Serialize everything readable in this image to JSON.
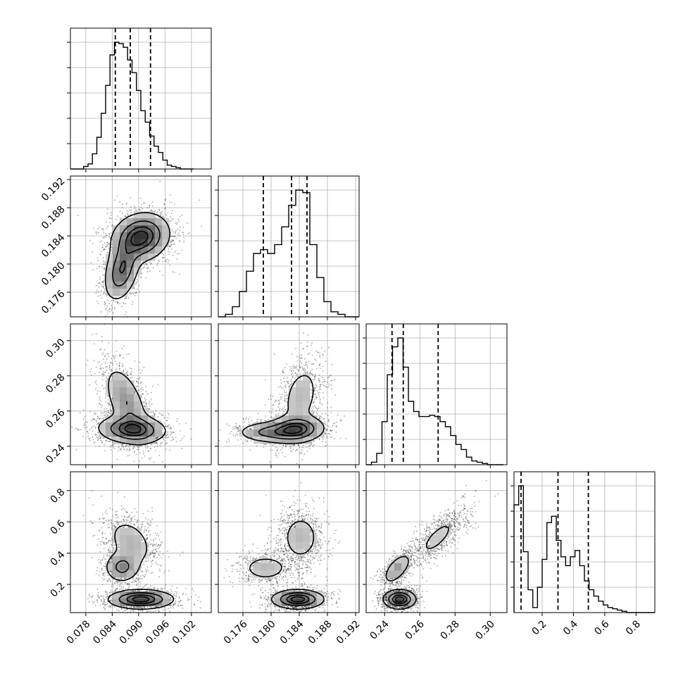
{
  "chart_data": {
    "type": "corner",
    "n_params": 4,
    "params": [
      {
        "index": 0,
        "range": [
          0.0745,
          0.1065
        ],
        "ticks": [
          0.078,
          0.084,
          0.09,
          0.096,
          0.102
        ],
        "tick_labels": [
          "0.078",
          "0.084",
          "0.090",
          "0.096",
          "0.102"
        ],
        "quantiles": [
          0.0847,
          0.0881,
          0.0927
        ],
        "hist_bins": [
          0.0745,
          0.0755,
          0.0765,
          0.0775,
          0.0785,
          0.0795,
          0.0805,
          0.0815,
          0.0825,
          0.0835,
          0.0845,
          0.0855,
          0.0865,
          0.0875,
          0.0885,
          0.0895,
          0.0905,
          0.0915,
          0.0925,
          0.0935,
          0.0945,
          0.0955,
          0.0965,
          0.0975,
          0.0985,
          0.0995,
          0.1005,
          0.1015,
          0.1025
        ],
        "hist_counts": [
          0,
          0,
          0,
          2,
          4,
          12,
          25,
          44,
          66,
          90,
          100,
          99,
          96,
          86,
          76,
          62,
          46,
          37,
          26,
          18,
          13,
          7,
          3,
          2,
          1,
          0,
          0,
          0
        ]
      },
      {
        "index": 1,
        "range": [
          0.1725,
          0.1925
        ],
        "ticks": [
          0.176,
          0.18,
          0.184,
          0.188,
          0.192
        ],
        "tick_labels": [
          "0.176",
          "0.180",
          "0.184",
          "0.188",
          "0.192"
        ],
        "quantiles": [
          0.1789,
          0.1829,
          0.1851
        ],
        "hist_bins": [
          0.1725,
          0.1735,
          0.1745,
          0.1755,
          0.1765,
          0.1775,
          0.1785,
          0.1795,
          0.1805,
          0.1815,
          0.1825,
          0.1835,
          0.1845,
          0.1855,
          0.1865,
          0.1875,
          0.1885,
          0.1895,
          0.1905,
          0.1915,
          0.1925
        ],
        "hist_counts": [
          0,
          2,
          8,
          20,
          36,
          50,
          53,
          50,
          57,
          71,
          88,
          100,
          98,
          57,
          31,
          12,
          4,
          2,
          0,
          0
        ]
      },
      {
        "index": 2,
        "range": [
          0.2295,
          0.3095
        ],
        "ticks": [
          0.24,
          0.26,
          0.28,
          0.3
        ],
        "tick_labels": [
          "0.24",
          "0.26",
          "0.28",
          "0.30"
        ],
        "quantiles": [
          0.2442,
          0.2506,
          0.2704
        ],
        "hist_bins": [
          0.2295,
          0.2325,
          0.2355,
          0.2385,
          0.2415,
          0.2445,
          0.2475,
          0.2505,
          0.2535,
          0.2565,
          0.2595,
          0.2625,
          0.2655,
          0.2685,
          0.2715,
          0.2745,
          0.2775,
          0.2805,
          0.2835,
          0.2865,
          0.2895,
          0.2925,
          0.2955,
          0.2985,
          0.3015,
          0.3045,
          0.3075
        ],
        "hist_counts": [
          0,
          2,
          9,
          34,
          71,
          93,
          100,
          77,
          50,
          42,
          38,
          38,
          39,
          38,
          34,
          30,
          23,
          16,
          12,
          6,
          3,
          2,
          1,
          0,
          0,
          0
        ]
      },
      {
        "index": 3,
        "range": [
          0.02,
          0.92
        ],
        "ticks": [
          0.2,
          0.4,
          0.6,
          0.8
        ],
        "tick_labels": [
          "0.2",
          "0.4",
          "0.6",
          "0.8"
        ],
        "quantiles": [
          0.065,
          0.301,
          0.495
        ],
        "hist_bins": [
          0.02,
          0.05,
          0.08,
          0.11,
          0.14,
          0.17,
          0.2,
          0.23,
          0.26,
          0.29,
          0.32,
          0.35,
          0.38,
          0.41,
          0.44,
          0.47,
          0.5,
          0.53,
          0.56,
          0.59,
          0.62,
          0.65,
          0.68,
          0.71,
          0.74,
          0.77,
          0.8,
          0.83,
          0.86,
          0.89,
          0.92
        ],
        "hist_counts": [
          85,
          100,
          48,
          18,
          4,
          20,
          42,
          71,
          76,
          57,
          44,
          37,
          44,
          49,
          37,
          25,
          18,
          13,
          9,
          6,
          4,
          3,
          2,
          1,
          0,
          0,
          0,
          0,
          0,
          0
        ]
      }
    ],
    "pairs": [
      {
        "x": 0,
        "y": 1,
        "modes": [
          {
            "cx": 0.0905,
            "cy": 0.1838,
            "sx": 0.0032,
            "sy": 0.0017,
            "rho": 0.15,
            "w": 0.65
          },
          {
            "cx": 0.0862,
            "cy": 0.1792,
            "sx": 0.002,
            "sy": 0.0022,
            "rho": 0.35,
            "w": 0.35
          }
        ]
      },
      {
        "x": 0,
        "y": 2,
        "modes": [
          {
            "cx": 0.0885,
            "cy": 0.2495,
            "sx": 0.0038,
            "sy": 0.004,
            "rho": -0.1,
            "w": 0.58
          },
          {
            "cx": 0.0872,
            "cy": 0.265,
            "sx": 0.0026,
            "sy": 0.011,
            "rho": -0.55,
            "w": 0.42
          }
        ]
      },
      {
        "x": 0,
        "y": 3,
        "modes": [
          {
            "cx": 0.0905,
            "cy": 0.105,
            "sx": 0.0036,
            "sy": 0.03,
            "rho": 0.0,
            "w": 0.5
          },
          {
            "cx": 0.0862,
            "cy": 0.31,
            "sx": 0.002,
            "sy": 0.05,
            "rho": 0.0,
            "w": 0.22
          },
          {
            "cx": 0.0882,
            "cy": 0.47,
            "sx": 0.003,
            "sy": 0.09,
            "rho": -0.35,
            "w": 0.28
          }
        ]
      },
      {
        "x": 1,
        "y": 2,
        "modes": [
          {
            "cx": 0.1835,
            "cy": 0.2495,
            "sx": 0.002,
            "sy": 0.0038,
            "rho": 0.1,
            "w": 0.5
          },
          {
            "cx": 0.1795,
            "cy": 0.248,
            "sx": 0.0022,
            "sy": 0.003,
            "rho": 0.0,
            "w": 0.22
          },
          {
            "cx": 0.1842,
            "cy": 0.268,
            "sx": 0.0016,
            "sy": 0.011,
            "rho": 0.3,
            "w": 0.28
          }
        ]
      },
      {
        "x": 1,
        "y": 3,
        "modes": [
          {
            "cx": 0.1838,
            "cy": 0.105,
            "sx": 0.0018,
            "sy": 0.03,
            "rho": 0.0,
            "w": 0.5
          },
          {
            "cx": 0.1792,
            "cy": 0.305,
            "sx": 0.002,
            "sy": 0.05,
            "rho": 0.0,
            "w": 0.2
          },
          {
            "cx": 0.1842,
            "cy": 0.5,
            "sx": 0.0016,
            "sy": 0.09,
            "rho": 0.0,
            "w": 0.3
          }
        ]
      },
      {
        "x": 2,
        "y": 3,
        "modes": [
          {
            "cx": 0.2485,
            "cy": 0.105,
            "sx": 0.0045,
            "sy": 0.03,
            "rho": 0.0,
            "w": 0.5
          },
          {
            "cx": 0.247,
            "cy": 0.3,
            "sx": 0.004,
            "sy": 0.05,
            "rho": 0.6,
            "w": 0.22
          },
          {
            "cx": 0.27,
            "cy": 0.5,
            "sx": 0.008,
            "sy": 0.09,
            "rho": 0.75,
            "w": 0.28
          }
        ]
      }
    ],
    "contour_levels": [
      0.118,
      0.393,
      0.675,
      0.864
    ],
    "grid": true,
    "legend": "none",
    "title": "",
    "xlabel": "",
    "ylabel": ""
  }
}
